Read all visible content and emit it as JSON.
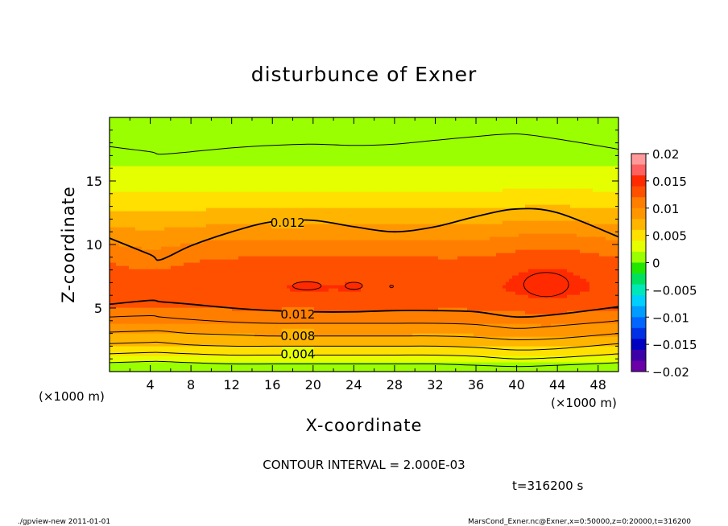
{
  "chart_data": {
    "type": "heatmap",
    "title": "disturbunce of Exner",
    "xlabel": "X-coordinate",
    "ylabel": "Z-coordinate",
    "x_unit_left": "(×1000 m)",
    "x_unit_right": "(×1000 m)",
    "xlim": [
      0,
      50
    ],
    "ylim": [
      0,
      20
    ],
    "x_ticks": [
      4,
      8,
      12,
      16,
      20,
      24,
      28,
      32,
      36,
      40,
      44,
      48
    ],
    "y_ticks": [
      5,
      10,
      15
    ],
    "colorbar": {
      "ticks": [
        "0.02",
        "0.015",
        "0.01",
        "0.005",
        "0",
        "−0.005",
        "−0.01",
        "−0.015",
        "−0.02"
      ],
      "levels": [
        0.02,
        0.018,
        0.016,
        0.014,
        0.012,
        0.01,
        0.008,
        0.006,
        0.004,
        0.002,
        0.0,
        -0.002,
        -0.004,
        -0.006,
        -0.008,
        -0.01,
        -0.012,
        -0.014,
        -0.016,
        -0.018,
        -0.02
      ],
      "colors": [
        "#ff9a9a",
        "#ff6060",
        "#ff2a00",
        "#ff5000",
        "#ff7e00",
        "#ff9600",
        "#ffb400",
        "#ffe000",
        "#e6ff00",
        "#9aff00",
        "#22e600",
        "#00e060",
        "#00e8b8",
        "#00d0ff",
        "#009cff",
        "#0066ff",
        "#0030e6",
        "#0000c0",
        "#3c00a8",
        "#6a00a8"
      ]
    },
    "contour_interval": 0.002,
    "contour_labels": [
      {
        "text": "0.012",
        "x": 17.5,
        "z": 11.7
      },
      {
        "text": "0.012",
        "x": 18.5,
        "z": 4.5
      },
      {
        "text": "0.008",
        "x": 18.5,
        "z": 2.8
      },
      {
        "text": "0.004",
        "x": 18.5,
        "z": 1.35
      }
    ],
    "contour_lines": [
      {
        "level": 0.01,
        "z": [
          17.7,
          17.3,
          17.1,
          17.3,
          17.6,
          17.8,
          17.9,
          17.8,
          17.9,
          18.2,
          18.5,
          18.7,
          18.3,
          17.5
        ]
      },
      {
        "level": 0.012,
        "z": [
          10.5,
          9.2,
          8.8,
          9.9,
          11.0,
          11.8,
          11.9,
          11.4,
          11.0,
          11.4,
          12.2,
          12.8,
          12.5,
          10.6
        ]
      },
      {
        "level": 0.012,
        "z": [
          5.3,
          5.6,
          5.5,
          5.3,
          5.0,
          4.8,
          4.7,
          4.7,
          4.8,
          4.8,
          4.7,
          4.3,
          4.5,
          5.1
        ]
      },
      {
        "level": 0.01,
        "z": [
          4.3,
          4.4,
          4.3,
          4.1,
          3.9,
          3.8,
          3.8,
          3.8,
          3.8,
          3.8,
          3.7,
          3.4,
          3.6,
          4.0
        ]
      },
      {
        "level": 0.008,
        "z": [
          3.1,
          3.2,
          3.2,
          3.0,
          2.9,
          2.8,
          2.8,
          2.8,
          2.8,
          2.8,
          2.7,
          2.5,
          2.6,
          3.0
        ]
      },
      {
        "level": 0.006,
        "z": [
          2.2,
          2.3,
          2.3,
          2.1,
          2.0,
          2.0,
          2.0,
          2.0,
          2.0,
          2.0,
          1.9,
          1.7,
          1.8,
          2.2
        ]
      },
      {
        "level": 0.004,
        "z": [
          1.4,
          1.5,
          1.5,
          1.4,
          1.3,
          1.3,
          1.3,
          1.3,
          1.3,
          1.3,
          1.2,
          1.0,
          1.1,
          1.4
        ]
      },
      {
        "level": 0.002,
        "z": [
          0.7,
          0.8,
          0.8,
          0.7,
          0.6,
          0.6,
          0.6,
          0.6,
          0.6,
          0.6,
          0.5,
          0.4,
          0.5,
          0.7
        ]
      }
    ],
    "contour_x": [
      0,
      4,
      5,
      8,
      12,
      16,
      20,
      24,
      28,
      32,
      36,
      40,
      44,
      50
    ],
    "grid": false,
    "legend": "colorbar at right"
  },
  "annotations": {
    "contour_interval_text": "CONTOUR INTERVAL = 2.000E-03",
    "time_text": "t=316200 s",
    "footer_left": "./gpview-new   2011-01-01",
    "footer_right": "MarsCond_Exner.nc@Exner,x=0:50000,z=0:20000,t=316200"
  }
}
